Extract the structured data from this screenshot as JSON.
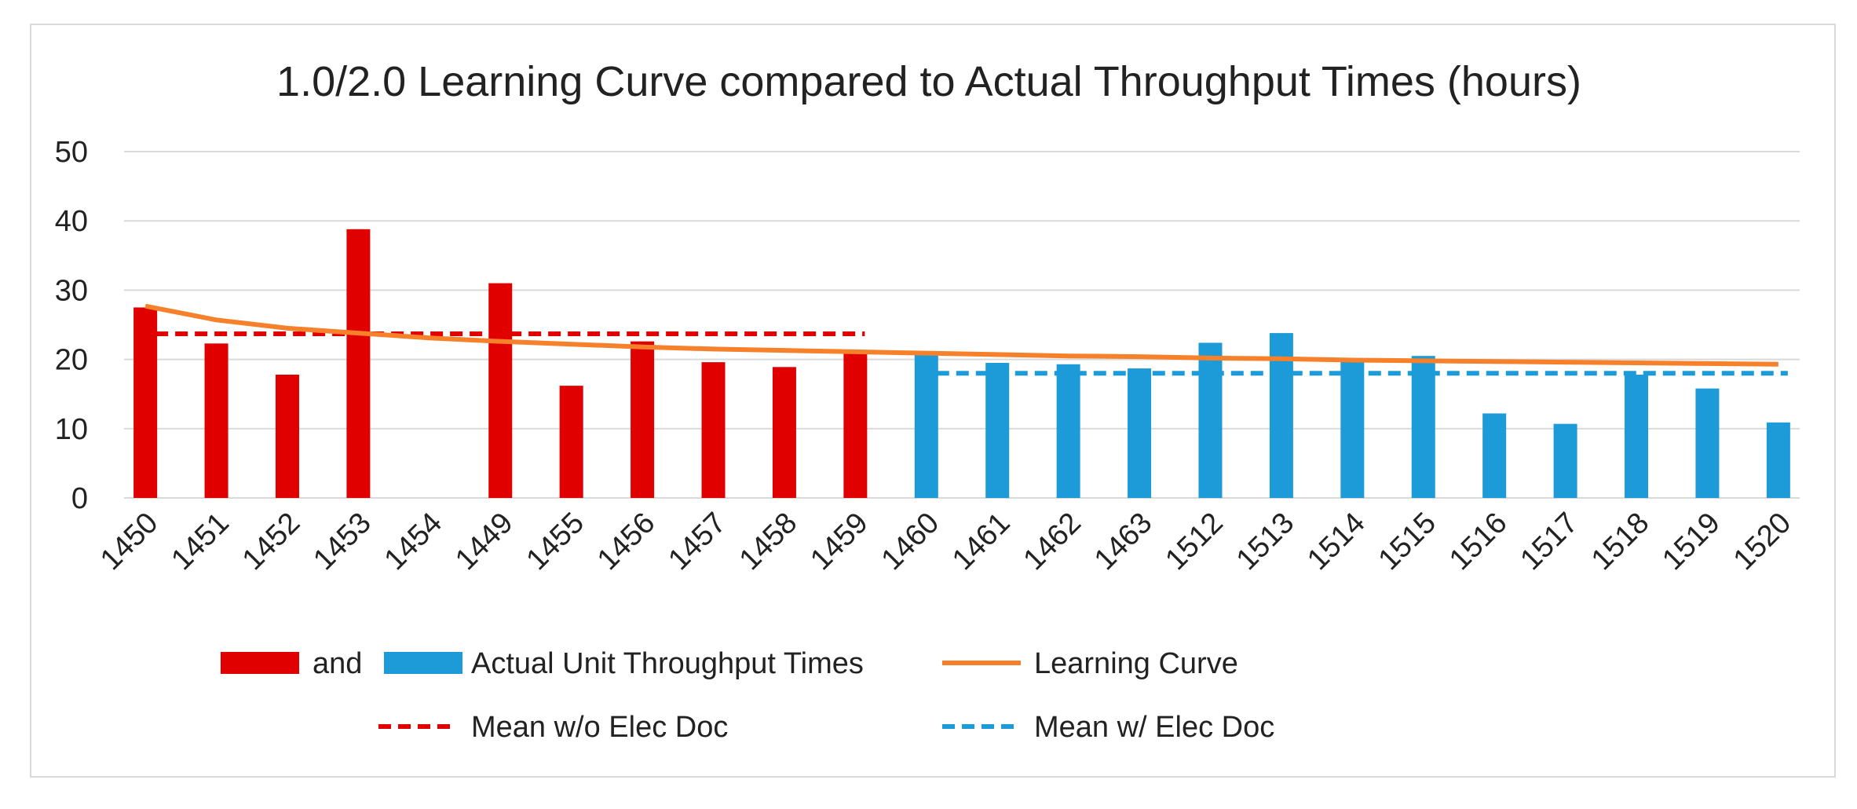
{
  "chart_data": {
    "type": "bar",
    "title": "1.0/2.0 Learning Curve compared to Actual Throughput Times (hours)",
    "xlabel": "",
    "ylabel": "",
    "ylim": [
      0,
      50
    ],
    "yticks": [
      0,
      10,
      20,
      30,
      40,
      50
    ],
    "grid": true,
    "categories": [
      "1450",
      "1451",
      "1452",
      "1453",
      "1454",
      "1449",
      "1455",
      "1456",
      "1457",
      "1458",
      "1459",
      "1460",
      "1461",
      "1462",
      "1463",
      "1512",
      "1513",
      "1514",
      "1515",
      "1516",
      "1517",
      "1518",
      "1519",
      "1520"
    ],
    "series": [
      {
        "name": "and",
        "kind": "bar",
        "color": "#e00000",
        "values": [
          27.5,
          22.3,
          17.8,
          38.8,
          null,
          31.0,
          16.2,
          22.6,
          19.6,
          18.9,
          21.3,
          null,
          null,
          null,
          null,
          null,
          null,
          null,
          null,
          null,
          null,
          null,
          null,
          null
        ]
      },
      {
        "name": "Actual Unit Throughput Times",
        "kind": "bar",
        "color": "#1c9bd8",
        "values": [
          null,
          null,
          null,
          null,
          null,
          null,
          null,
          null,
          null,
          null,
          null,
          21.0,
          19.5,
          19.3,
          18.7,
          22.4,
          23.8,
          19.9,
          20.5,
          12.2,
          10.7,
          17.8,
          15.8,
          10.9
        ]
      },
      {
        "name": "Learning Curve",
        "kind": "line",
        "color": "#f6812a",
        "values": [
          27.7,
          25.7,
          24.5,
          23.8,
          23.1,
          22.6,
          22.2,
          21.8,
          21.5,
          21.3,
          21.1,
          20.9,
          20.7,
          20.5,
          20.4,
          20.2,
          20.1,
          19.9,
          19.8,
          19.7,
          19.6,
          19.5,
          19.4,
          19.3
        ]
      },
      {
        "name": "Mean w/o Elec Doc",
        "kind": "dashed-line",
        "color": "#e00000",
        "value": 23.7,
        "from_index": 0,
        "to_index": 10
      },
      {
        "name": "Mean w/ Elec Doc",
        "kind": "dashed-line",
        "color": "#1c9bd8",
        "value": 18.0,
        "from_index": 11,
        "to_index": 23
      }
    ],
    "legend_position": "bottom"
  }
}
